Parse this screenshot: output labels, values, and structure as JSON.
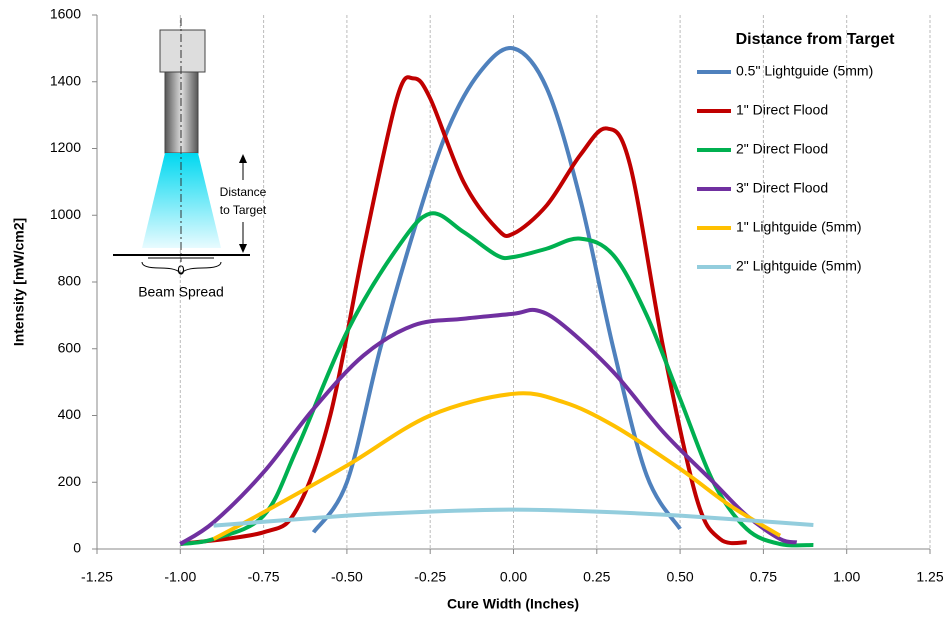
{
  "chart_data": {
    "type": "line",
    "xlabel": "Cure Width (Inches)",
    "ylabel": "Intensity [mW/cm2]",
    "legend_title": "Distance from Target",
    "legend_position": "right",
    "annotations": [
      "Distance",
      "to Target",
      "0",
      "Beam Spread"
    ],
    "xlim": [
      -1.25,
      1.25
    ],
    "xticks": [
      {
        "value": -1.25,
        "label": "-1.25"
      },
      {
        "value": -1.0,
        "label": "-1.00"
      },
      {
        "value": -0.75,
        "label": "-0.75"
      },
      {
        "value": -0.5,
        "label": "-0.50"
      },
      {
        "value": -0.25,
        "label": "-0.25"
      },
      {
        "value": 0,
        "label": "0.00"
      },
      {
        "value": 0.25,
        "label": "0.25"
      },
      {
        "value": 0.5,
        "label": "0.50"
      },
      {
        "value": 0.75,
        "label": "0.75"
      },
      {
        "value": 1.0,
        "label": "1.00"
      },
      {
        "value": 1.25,
        "label": "1.25"
      }
    ],
    "ylim": [
      0,
      1600
    ],
    "yticks": [
      0,
      200,
      400,
      600,
      800,
      1000,
      1200,
      1400,
      1600
    ],
    "grid": "x",
    "series": [
      {
        "name": "0.5\" Lightguide (5mm)",
        "color": "#4f81bd",
        "x": [
          -0.6,
          -0.5,
          -0.4,
          -0.3,
          -0.2,
          -0.1,
          0,
          0.1,
          0.2,
          0.3,
          0.4,
          0.5
        ],
        "values": [
          50,
          200,
          600,
          950,
          1250,
          1430,
          1500,
          1380,
          1050,
          600,
          220,
          60
        ]
      },
      {
        "name": "1\" Direct Flood",
        "color": "#c00000",
        "x": [
          -1.0,
          -0.75,
          -0.65,
          -0.55,
          -0.45,
          -0.35,
          -0.3,
          -0.25,
          -0.15,
          -0.05,
          0,
          0.1,
          0.2,
          0.28,
          0.35,
          0.45,
          0.55,
          0.62,
          0.7
        ],
        "values": [
          15,
          50,
          120,
          400,
          900,
          1350,
          1410,
          1350,
          1100,
          960,
          945,
          1030,
          1180,
          1260,
          1150,
          600,
          150,
          30,
          20
        ]
      },
      {
        "name": "2\" Direct Flood",
        "color": "#00b050",
        "x": [
          -1.0,
          -0.9,
          -0.75,
          -0.65,
          -0.5,
          -0.35,
          -0.25,
          -0.15,
          -0.05,
          0,
          0.1,
          0.2,
          0.3,
          0.4,
          0.5,
          0.6,
          0.7,
          0.8,
          0.9
        ],
        "values": [
          15,
          30,
          100,
          300,
          650,
          900,
          1005,
          950,
          880,
          875,
          900,
          930,
          880,
          700,
          450,
          200,
          60,
          15,
          12
        ]
      },
      {
        "name": "3\" Direct Flood",
        "color": "#7030a0",
        "x": [
          -1.0,
          -0.9,
          -0.75,
          -0.6,
          -0.45,
          -0.3,
          -0.15,
          0,
          0.07,
          0.15,
          0.3,
          0.45,
          0.6,
          0.7,
          0.8,
          0.85
        ],
        "values": [
          15,
          80,
          230,
          420,
          580,
          670,
          690,
          705,
          715,
          670,
          530,
          350,
          200,
          100,
          30,
          20
        ]
      },
      {
        "name": "1\" Lightguide (5mm)",
        "color": "#ffc000",
        "x": [
          -0.9,
          -0.75,
          -0.5,
          -0.25,
          0,
          0.15,
          0.3,
          0.5,
          0.65,
          0.8
        ],
        "values": [
          30,
          110,
          250,
          400,
          465,
          440,
          370,
          240,
          130,
          40
        ]
      },
      {
        "name": "2\" Lightguide (5mm)",
        "color": "#93cddd",
        "x": [
          -0.9,
          -0.5,
          -0.25,
          0,
          0.25,
          0.5,
          0.9
        ],
        "values": [
          70,
          100,
          112,
          118,
          112,
          100,
          72
        ]
      }
    ]
  }
}
